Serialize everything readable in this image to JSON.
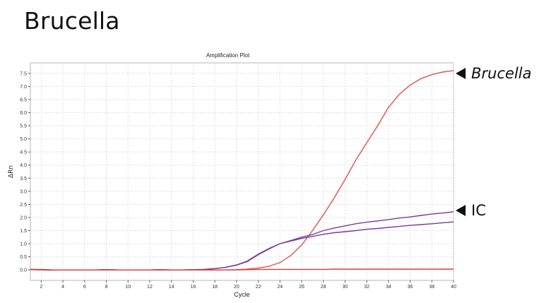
{
  "heading": "Brucella",
  "annotations": {
    "brucella_label": "Brucella",
    "ic_label": "IC"
  },
  "chart_data": {
    "type": "line",
    "title": "Amplification Plot",
    "xlabel": "Cycle",
    "ylabel": "ΔRn",
    "xlim": [
      1,
      40
    ],
    "ylim": [
      -0.4,
      7.9
    ],
    "xticks": [
      2,
      4,
      6,
      8,
      10,
      12,
      14,
      16,
      18,
      20,
      22,
      24,
      26,
      28,
      30,
      32,
      34,
      36,
      38,
      40
    ],
    "yticks": [
      "0.0",
      "0.5",
      "1.0",
      "1.5",
      "2.0",
      "2.5",
      "3.0",
      "3.5",
      "4.0",
      "4.5",
      "5.0",
      "5.5",
      "6.0",
      "6.5",
      "7.0",
      "7.5"
    ],
    "grid": true,
    "series": [
      {
        "color": "#d9534f",
        "x": [
          1,
          2,
          3,
          4,
          5,
          6,
          7,
          8,
          9,
          10,
          11,
          12,
          13,
          14,
          15,
          16,
          17,
          18,
          19,
          20,
          21,
          22,
          23,
          24,
          25,
          26,
          27,
          28,
          29,
          30,
          31,
          32,
          33,
          34,
          35,
          36,
          37,
          38,
          39,
          40
        ],
        "values": [
          0.01,
          0.0,
          -0.01,
          0.0,
          0.0,
          0.0,
          0.0,
          0.01,
          0.0,
          0.0,
          0.0,
          0.0,
          0.0,
          0.0,
          0.0,
          0.0,
          0.0,
          0.0,
          0.0,
          0.01,
          0.03,
          0.07,
          0.14,
          0.28,
          0.55,
          0.95,
          1.5,
          2.1,
          2.75,
          3.45,
          4.2,
          4.85,
          5.5,
          6.2,
          6.7,
          7.05,
          7.3,
          7.45,
          7.55,
          7.6
        ]
      },
      {
        "color": "#7b3b98",
        "x": [
          1,
          2,
          3,
          4,
          5,
          6,
          7,
          8,
          9,
          10,
          11,
          12,
          13,
          14,
          15,
          16,
          17,
          18,
          19,
          20,
          21,
          22,
          23,
          24,
          25,
          26,
          27,
          28,
          29,
          30,
          31,
          32,
          33,
          34,
          35,
          36,
          37,
          38,
          39,
          40
        ],
        "values": [
          0.02,
          0.01,
          0.0,
          0.0,
          0.0,
          0.0,
          0.0,
          0.01,
          0.0,
          0.0,
          0.0,
          0.0,
          0.01,
          0.0,
          0.0,
          0.01,
          0.02,
          0.05,
          0.1,
          0.18,
          0.32,
          0.58,
          0.8,
          1.0,
          1.12,
          1.25,
          1.35,
          1.5,
          1.6,
          1.68,
          1.76,
          1.82,
          1.87,
          1.92,
          1.98,
          2.02,
          2.08,
          2.13,
          2.17,
          2.22
        ]
      },
      {
        "color": "#7b3b98",
        "x": [
          1,
          2,
          3,
          4,
          5,
          6,
          7,
          8,
          9,
          10,
          11,
          12,
          13,
          14,
          15,
          16,
          17,
          18,
          19,
          20,
          21,
          22,
          23,
          24,
          25,
          26,
          27,
          28,
          29,
          30,
          31,
          32,
          33,
          34,
          35,
          36,
          37,
          38,
          39,
          40
        ],
        "values": [
          0.02,
          0.01,
          0.0,
          0.0,
          0.0,
          0.0,
          0.0,
          0.01,
          0.0,
          0.0,
          0.0,
          0.0,
          0.01,
          0.0,
          0.0,
          0.01,
          0.02,
          0.05,
          0.1,
          0.19,
          0.34,
          0.6,
          0.82,
          1.0,
          1.1,
          1.2,
          1.28,
          1.36,
          1.42,
          1.46,
          1.5,
          1.55,
          1.58,
          1.62,
          1.66,
          1.7,
          1.73,
          1.76,
          1.8,
          1.83
        ]
      },
      {
        "color": "#e0403a",
        "x": [
          1,
          2,
          3,
          4,
          5,
          6,
          7,
          8,
          9,
          10,
          11,
          12,
          13,
          14,
          15,
          16,
          17,
          18,
          19,
          20,
          21,
          22,
          23,
          24,
          25,
          26,
          27,
          28,
          29,
          30,
          31,
          32,
          33,
          34,
          35,
          36,
          37,
          38,
          39,
          40
        ],
        "values": [
          0.02,
          0.02,
          0.0,
          0.0,
          0.0,
          0.0,
          0.0,
          0.0,
          0.0,
          0.0,
          0.0,
          0.0,
          0.0,
          0.0,
          0.0,
          0.0,
          0.0,
          0.0,
          0.0,
          0.0,
          0.01,
          0.02,
          0.02,
          0.02,
          0.02,
          0.02,
          0.02,
          0.02,
          0.03,
          0.03,
          0.03,
          0.03,
          0.03,
          0.03,
          0.03,
          0.03,
          0.03,
          0.03,
          0.03,
          0.03
        ]
      }
    ]
  }
}
